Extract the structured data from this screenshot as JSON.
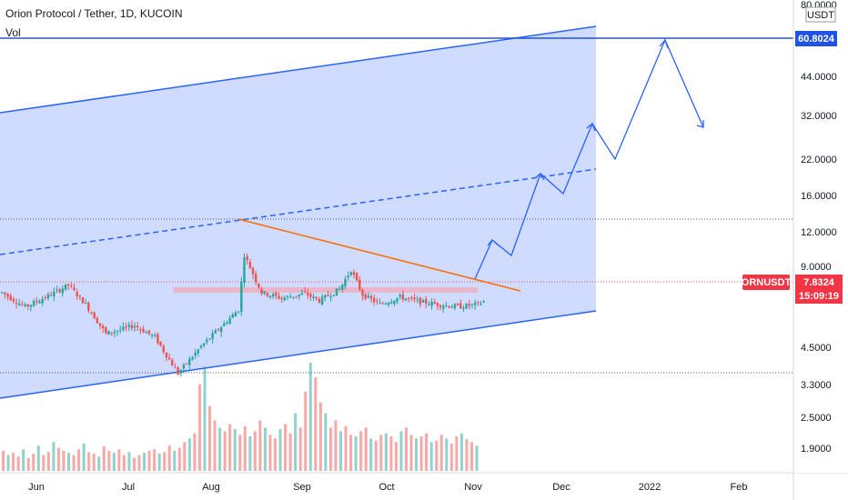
{
  "header": {
    "symbol_title": "Orion Protocol / Tether, 1D, KUCOIN",
    "volume_label": "Vol"
  },
  "price_axis": {
    "currency": "USDT",
    "ticks": [
      "80.0000",
      "44.0000",
      "32.0000",
      "22.0000",
      "16.0000",
      "12.0000",
      "9.0000",
      "4.5000",
      "3.3000",
      "2.5000",
      "1.9000"
    ],
    "scale": "log"
  },
  "time_axis": {
    "ticks": [
      "Jun",
      "Jul",
      "Aug",
      "Sep",
      "Oct",
      "Nov",
      "Dec",
      "2022",
      "Feb"
    ]
  },
  "badges": {
    "target_price": "60.8024",
    "symbol": "ORNUSDT",
    "last_price": "7.8324",
    "countdown": "15:09:19"
  },
  "colors": {
    "up": "#26a69a",
    "down": "#ef5350",
    "drawing_blue": "#2962ff",
    "channel_fill": "#c7d5ff",
    "trendline_orange": "#ff6d00",
    "badge_blue": "#1e53e5",
    "badge_red": "#f23645"
  },
  "chart_data": {
    "type": "candlestick",
    "instrument": "ORNUSDT",
    "interval": "1D",
    "exchange": "KUCOIN",
    "last_price": 7.8324,
    "target_level": 60.8024,
    "horizontal_levels": [
      12.8,
      3.7
    ],
    "support_zone": [
      7.1,
      7.4
    ],
    "price_path": [
      {
        "date": "2021-05-20",
        "close": 8.6
      },
      {
        "date": "2021-05-28",
        "close": 7.4
      },
      {
        "date": "2021-06-05",
        "close": 8.3
      },
      {
        "date": "2021-06-12",
        "close": 9.3
      },
      {
        "date": "2021-06-18",
        "close": 7.6
      },
      {
        "date": "2021-06-25",
        "close": 5.6
      },
      {
        "date": "2021-07-05",
        "close": 6.1
      },
      {
        "date": "2021-07-12",
        "close": 5.4
      },
      {
        "date": "2021-07-20",
        "close": 3.7
      },
      {
        "date": "2021-07-28",
        "close": 4.9
      },
      {
        "date": "2021-08-05",
        "close": 6.2
      },
      {
        "date": "2021-08-10",
        "close": 7.2
      },
      {
        "date": "2021-08-12",
        "close": 12.7
      },
      {
        "date": "2021-08-18",
        "close": 8.6
      },
      {
        "date": "2021-08-25",
        "close": 8.1
      },
      {
        "date": "2021-09-02",
        "close": 8.5
      },
      {
        "date": "2021-09-07",
        "close": 7.9
      },
      {
        "date": "2021-09-14",
        "close": 8.9
      },
      {
        "date": "2021-09-18",
        "close": 10.9
      },
      {
        "date": "2021-09-22",
        "close": 8.4
      },
      {
        "date": "2021-09-28",
        "close": 7.6
      },
      {
        "date": "2021-10-05",
        "close": 8.2
      },
      {
        "date": "2021-10-12",
        "close": 7.8
      },
      {
        "date": "2021-10-18",
        "close": 7.6
      },
      {
        "date": "2021-10-25",
        "close": 7.4
      },
      {
        "date": "2021-11-01",
        "close": 7.6
      },
      {
        "date": "2021-11-03",
        "close": 7.8324
      }
    ],
    "volume_bars": [
      28,
      22,
      25,
      20,
      30,
      18,
      24,
      35,
      22,
      26,
      40,
      32,
      28,
      25,
      22,
      30,
      38,
      26,
      24,
      20,
      34,
      28,
      25,
      30,
      22,
      26,
      18,
      22,
      25,
      28,
      30,
      24,
      26,
      35,
      28,
      32,
      40,
      45,
      52,
      120,
      145,
      90,
      70,
      60,
      55,
      65,
      58,
      50,
      62,
      48,
      55,
      70,
      60,
      50,
      45,
      58,
      65,
      52,
      80,
      60,
      110,
      150,
      130,
      95,
      80,
      60,
      70,
      55,
      62,
      50,
      48,
      55,
      60,
      45,
      42,
      50,
      52,
      48,
      40,
      55,
      60,
      50,
      45,
      48,
      52,
      40,
      42,
      50,
      45,
      38,
      48,
      52,
      44,
      40,
      35
    ]
  }
}
